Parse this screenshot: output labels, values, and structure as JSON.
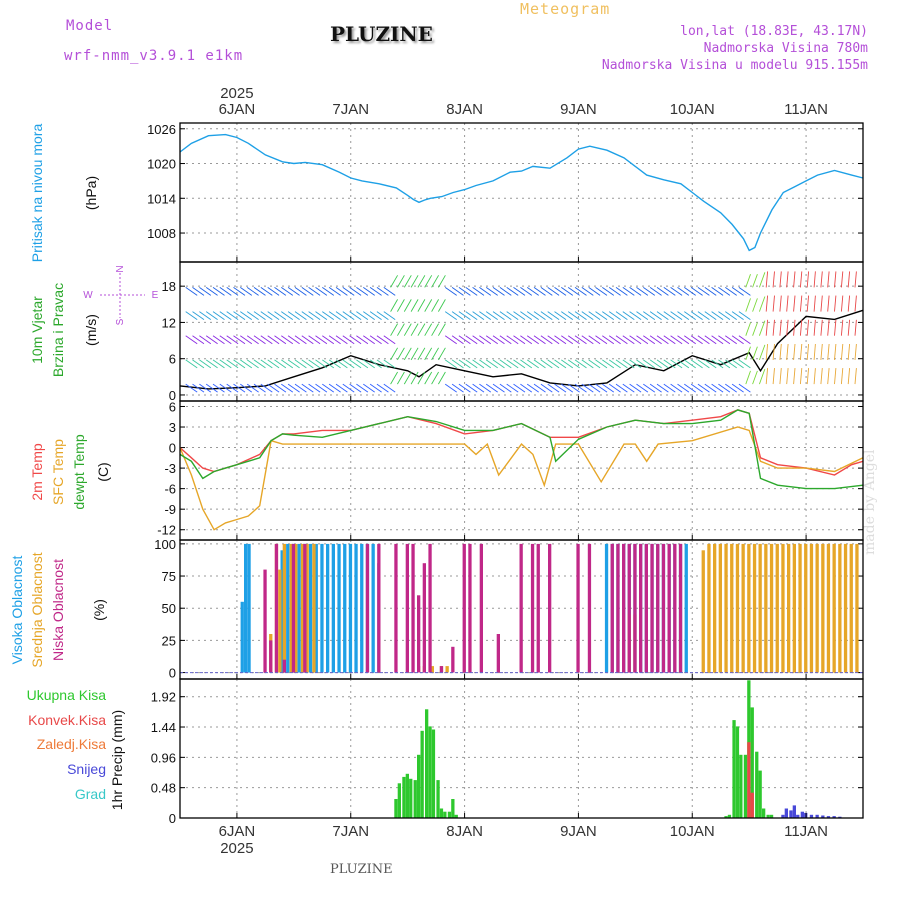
{
  "header": {
    "model_label": "Model",
    "model_name": "wrf-nmm_v3.9.1 e1km",
    "station": "PLUZINE",
    "meteogram_label": "Meteogram",
    "coords": "lon,lat (18.83E, 43.17N)",
    "elevation": "Nadmorska Visina 780m",
    "model_elevation": "Nadmorska Visina u modelu 915.155m"
  },
  "footer": {
    "station": "PLUZINE",
    "watermark": "made by Angel"
  },
  "time_axis": {
    "year": "2025",
    "days": [
      "6JAN",
      "7JAN",
      "8JAN",
      "9JAN",
      "10JAN",
      "11JAN"
    ],
    "day_positions": [
      6,
      7,
      8,
      9,
      10,
      11
    ],
    "range": [
      5.5,
      11.5
    ]
  },
  "chart_data": [
    {
      "type": "line",
      "id": "pressure",
      "ylabel": [
        "Pritisak na nivou mora",
        "(hPa)"
      ],
      "ylim": [
        1003,
        1027
      ],
      "yticks": [
        1008,
        1014,
        1020,
        1026
      ],
      "grid": true,
      "series": [
        {
          "color": "#1ea0e6",
          "x": [
            5.5,
            5.6,
            5.75,
            5.9,
            6.0,
            6.1,
            6.25,
            6.4,
            6.5,
            6.6,
            6.75,
            6.9,
            7.0,
            7.1,
            7.25,
            7.4,
            7.5,
            7.55,
            7.6,
            7.65,
            7.7,
            7.8,
            7.9,
            8.0,
            8.1,
            8.25,
            8.4,
            8.5,
            8.6,
            8.75,
            8.9,
            9.0,
            9.1,
            9.25,
            9.4,
            9.5,
            9.6,
            9.75,
            9.9,
            10.0,
            10.1,
            10.25,
            10.35,
            10.45,
            10.5,
            10.55,
            10.6,
            10.7,
            10.8,
            10.9,
            11.0,
            11.1,
            11.25,
            11.4,
            11.5
          ],
          "y": [
            1022,
            1023.5,
            1024.8,
            1025,
            1024.5,
            1023.5,
            1021.5,
            1020.3,
            1020,
            1020.2,
            1019.8,
            1018.5,
            1017.5,
            1017,
            1016.5,
            1015.8,
            1014.5,
            1013.8,
            1013.3,
            1013.7,
            1014,
            1014.3,
            1015,
            1015.5,
            1016.2,
            1017,
            1018.5,
            1018.7,
            1019.5,
            1019.2,
            1021,
            1022.5,
            1023,
            1022.3,
            1021,
            1019.5,
            1018,
            1017.2,
            1016.5,
            1015,
            1013.5,
            1011.5,
            1009.5,
            1007,
            1005,
            1005.5,
            1008,
            1012,
            1015,
            1016,
            1017,
            1018,
            1018.8,
            1018,
            1017.5
          ]
        }
      ]
    },
    {
      "type": "line",
      "id": "wind",
      "ylabel": [
        "10m Vjetar",
        "Brzina i Pravac",
        "(m/s)"
      ],
      "compass": [
        "N",
        "E",
        "S",
        "W"
      ],
      "ylim": [
        -1,
        22
      ],
      "yticks": [
        0,
        6,
        12,
        18
      ],
      "grid": true,
      "series": [
        {
          "color": "#000000",
          "x": [
            5.5,
            5.75,
            6.0,
            6.25,
            6.5,
            6.75,
            7.0,
            7.25,
            7.5,
            7.6,
            7.75,
            8.0,
            8.25,
            8.5,
            8.75,
            9.0,
            9.25,
            9.5,
            9.75,
            10.0,
            10.25,
            10.5,
            10.6,
            10.75,
            11.0,
            11.25,
            11.5
          ],
          "y": [
            1.5,
            1,
            1.2,
            1.5,
            3,
            4.5,
            6.5,
            5,
            4,
            3,
            5,
            4,
            3,
            3.5,
            2,
            1.5,
            2,
            5,
            4,
            6.5,
            5,
            7,
            4,
            8.5,
            13,
            12.5,
            14
          ]
        }
      ]
    },
    {
      "type": "line",
      "id": "temperature",
      "ylabel": [
        "2m Temp",
        "SFC Temp",
        "dewpt Temp",
        "(C)"
      ],
      "ylim": [
        -13.5,
        6.8
      ],
      "yticks": [
        6,
        3,
        0,
        -3,
        -6,
        -9,
        -12
      ],
      "grid": true,
      "series": [
        {
          "name": "2m Temp",
          "color": "#f04848",
          "x": [
            5.5,
            5.6,
            5.7,
            5.8,
            5.9,
            6.0,
            6.2,
            6.3,
            6.4,
            6.5,
            6.75,
            7.0,
            7.25,
            7.5,
            7.75,
            8.0,
            8.25,
            8.5,
            8.75,
            9.0,
            9.25,
            9.5,
            9.75,
            10.0,
            10.25,
            10.4,
            10.5,
            10.6,
            10.75,
            11.0,
            11.25,
            11.4,
            11.5
          ],
          "y": [
            0,
            -1.5,
            -3,
            -3.5,
            -3,
            -2.5,
            -1,
            1,
            2,
            2,
            2.5,
            2.5,
            3.5,
            4.5,
            3.5,
            2,
            2.5,
            3.5,
            1.5,
            1.5,
            3,
            4,
            3.5,
            4,
            4.5,
            5.5,
            5,
            -1.5,
            -2.5,
            -3,
            -4,
            -2.5,
            -2
          ]
        },
        {
          "name": "SFC Temp",
          "color": "#e6a628",
          "x": [
            5.5,
            5.6,
            5.7,
            5.8,
            5.9,
            6.0,
            6.1,
            6.2,
            6.3,
            6.4,
            6.5,
            7.0,
            7.5,
            8.0,
            8.1,
            8.2,
            8.3,
            8.5,
            8.6,
            8.7,
            8.8,
            9.0,
            9.2,
            9.4,
            9.5,
            9.6,
            9.7,
            10.0,
            10.4,
            10.5,
            10.6,
            10.75,
            11.0,
            11.25,
            11.5
          ],
          "y": [
            0,
            -4,
            -9,
            -12,
            -11,
            -10.5,
            -10,
            -8.5,
            1,
            0.5,
            0.5,
            0.5,
            0.5,
            0.5,
            -1,
            0.5,
            -4,
            0.5,
            -1,
            -5.5,
            0.5,
            0.5,
            -5,
            0.5,
            0.5,
            -2,
            0.5,
            1,
            3,
            2.5,
            -2,
            -3,
            -3,
            -3.5,
            -1.5
          ]
        },
        {
          "name": "dewpt Temp",
          "color": "#2ca82c",
          "x": [
            5.5,
            5.6,
            5.7,
            5.8,
            5.9,
            6.0,
            6.2,
            6.3,
            6.4,
            6.5,
            6.75,
            7.0,
            7.25,
            7.5,
            7.75,
            8.0,
            8.25,
            8.5,
            8.75,
            8.8,
            9.0,
            9.25,
            9.5,
            9.75,
            10.0,
            10.25,
            10.4,
            10.5,
            10.6,
            10.75,
            11.0,
            11.25,
            11.5
          ],
          "y": [
            -1,
            -2,
            -4.5,
            -3.5,
            -3,
            -2.5,
            -1.5,
            1,
            2,
            1.8,
            1.5,
            2.5,
            3.5,
            4.5,
            3.8,
            2.5,
            2.5,
            3.5,
            1.5,
            -2,
            1.2,
            3,
            4,
            3.5,
            3.5,
            4,
            5.5,
            5,
            -4.5,
            -5.5,
            -6,
            -6,
            -5.5
          ]
        }
      ]
    },
    {
      "type": "bar",
      "id": "cloud",
      "ylabel": [
        "Visoka Oblacnost",
        "Srednja Oblacnost",
        "Niska Oblacnost",
        "(%)"
      ],
      "ylim": [
        -5,
        103
      ],
      "yticks": [
        0,
        25,
        50,
        75,
        100
      ],
      "grid": true,
      "series": [
        {
          "name": "Visoka Oblacnost",
          "color": "#1ea0e6",
          "x": [
            6.05,
            6.08,
            6.11,
            6.4,
            6.45,
            6.5,
            6.55,
            6.6,
            6.65,
            6.7,
            6.75,
            6.8,
            6.85,
            6.9,
            6.95,
            7.0,
            7.05,
            7.1,
            7.15,
            7.2,
            7.25,
            9.25,
            9.3,
            9.35,
            9.4,
            9.45,
            9.5,
            9.55,
            9.6,
            9.65,
            9.7,
            9.75,
            9.8,
            9.85,
            9.9,
            9.95
          ],
          "values": [
            55,
            100,
            100,
            95,
            100,
            100,
            100,
            100,
            100,
            100,
            100,
            100,
            100,
            100,
            100,
            100,
            100,
            100,
            100,
            100,
            85,
            100,
            100,
            100,
            100,
            100,
            100,
            100,
            100,
            100,
            100,
            100,
            100,
            100,
            100,
            100
          ]
        },
        {
          "name": "Srednja Oblacnost",
          "color": "#e6a628",
          "x": [
            6.3,
            6.35,
            6.38,
            6.42,
            6.48,
            6.52,
            6.58,
            6.62,
            6.68,
            7.6,
            7.65,
            7.72,
            7.8,
            7.85,
            9.45,
            9.5,
            10.1,
            10.15,
            10.2,
            10.25,
            10.3,
            10.35,
            10.4,
            10.45,
            10.5,
            10.55,
            10.6,
            10.65,
            10.7,
            10.75,
            10.8,
            10.85,
            10.9,
            10.95,
            11.0,
            11.05,
            11.1,
            11.15,
            11.2,
            11.25,
            11.3,
            11.35,
            11.4,
            11.45
          ],
          "values": [
            30,
            100,
            80,
            100,
            100,
            100,
            100,
            100,
            100,
            5,
            5,
            5,
            5,
            5,
            45,
            45,
            95,
            100,
            100,
            100,
            100,
            100,
            100,
            100,
            100,
            100,
            100,
            100,
            100,
            100,
            100,
            100,
            100,
            100,
            100,
            100,
            100,
            100,
            100,
            100,
            100,
            100,
            100,
            100
          ]
        },
        {
          "name": "Niska Oblacnost",
          "color": "#c02888",
          "x": [
            6.25,
            6.3,
            6.35,
            6.42,
            6.5,
            6.6,
            7.15,
            7.25,
            7.4,
            7.5,
            7.55,
            7.6,
            7.65,
            7.7,
            7.8,
            7.9,
            8.0,
            8.05,
            8.15,
            8.3,
            8.5,
            8.6,
            8.65,
            8.75,
            9.0,
            9.1,
            9.3,
            9.35,
            9.4,
            9.45,
            9.5,
            9.55,
            9.6,
            9.65,
            9.7,
            9.75,
            9.8,
            9.85,
            9.9
          ],
          "values": [
            80,
            25,
            100,
            10,
            100,
            100,
            100,
            100,
            100,
            100,
            100,
            60,
            85,
            100,
            5,
            20,
            100,
            100,
            100,
            30,
            100,
            100,
            100,
            100,
            100,
            100,
            100,
            100,
            100,
            100,
            100,
            100,
            100,
            100,
            100,
            100,
            100,
            100,
            100
          ]
        }
      ]
    },
    {
      "type": "bar",
      "id": "precip",
      "ylabel": [
        "1hr Precip",
        "(mm)"
      ],
      "legend": [
        "Ukupna Kisa",
        "Konvek.Kisa",
        "Zaledj.Kisa",
        "Snijeg",
        "Grad"
      ],
      "legend_colors": [
        "#2ec82e",
        "#e84848",
        "#ee7a38",
        "#4848d8",
        "#38c8c8"
      ],
      "ylim": [
        0,
        2.2
      ],
      "yticks": [
        0,
        0.48,
        0.96,
        1.44,
        1.92
      ],
      "grid": true,
      "series": [
        {
          "name": "Ukupna Kisa",
          "color": "#2ec82e",
          "x": [
            7.4,
            7.43,
            7.47,
            7.5,
            7.53,
            7.57,
            7.6,
            7.63,
            7.67,
            7.7,
            7.73,
            7.77,
            7.8,
            7.83,
            7.87,
            7.9,
            7.93,
            10.3,
            10.33,
            10.37,
            10.4,
            10.43,
            10.47,
            10.5,
            10.53,
            10.57,
            10.6,
            10.63,
            10.67,
            10.7
          ],
          "values": [
            0.3,
            0.55,
            0.65,
            0.7,
            0.62,
            0.6,
            1.0,
            1.38,
            1.72,
            1.45,
            1.4,
            0.6,
            0.15,
            0.1,
            0.1,
            0.3,
            0.05,
            0.03,
            0.05,
            1.55,
            1.45,
            1.0,
            1.0,
            2.18,
            1.75,
            1.05,
            0.75,
            0.15,
            0.05,
            0.05
          ]
        },
        {
          "name": "Konvek.Kisa",
          "color": "#e84848",
          "x": [
            10.5,
            10.53
          ],
          "values": [
            1.2,
            0.4
          ]
        },
        {
          "name": "Snijeg",
          "color": "#4848d8",
          "x": [
            10.8,
            10.83,
            10.87,
            10.9,
            10.93,
            10.97,
            11.0,
            11.05,
            11.1,
            11.15,
            11.2,
            11.25,
            11.3
          ],
          "values": [
            0.05,
            0.15,
            0.12,
            0.2,
            0.05,
            0.1,
            0.08,
            0.05,
            0.05,
            0.04,
            0.03,
            0.03,
            0.02
          ]
        }
      ]
    }
  ]
}
